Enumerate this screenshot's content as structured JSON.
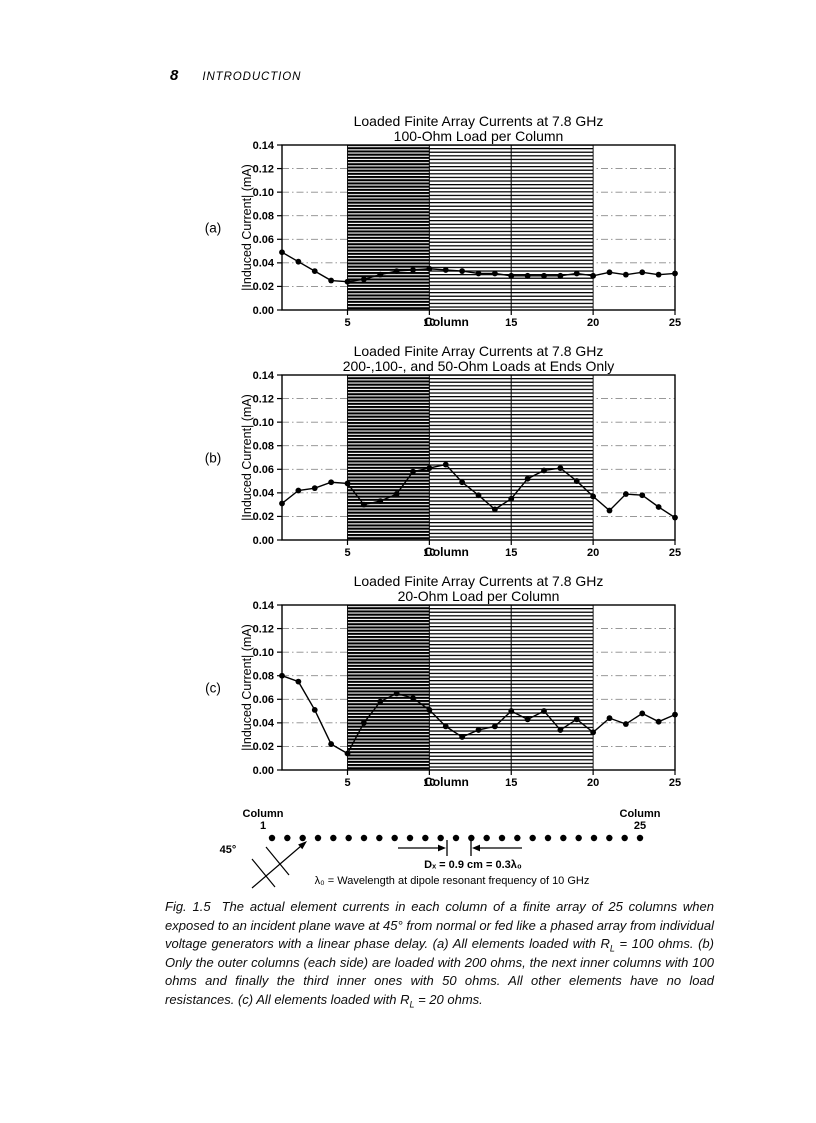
{
  "page": {
    "number": "8",
    "running_head": "INTRODUCTION"
  },
  "colors": {
    "ink": "#000000",
    "paper": "#ffffff",
    "gridline": "#8a8a8a"
  },
  "chart_data": [
    {
      "type": "line",
      "panel": "(a)",
      "title": "Loaded Finite Array Currents at 7.8 GHz",
      "subtitle": "100-Ohm Load per Column",
      "xlabel": "Column",
      "ylabel": "|Induced Current| (mA)",
      "x": [
        1,
        2,
        3,
        4,
        5,
        6,
        7,
        8,
        9,
        10,
        11,
        12,
        13,
        14,
        15,
        16,
        17,
        18,
        19,
        20,
        21,
        22,
        23,
        24,
        25
      ],
      "values": [
        0.049,
        0.041,
        0.033,
        0.025,
        0.024,
        0.026,
        0.03,
        0.033,
        0.034,
        0.035,
        0.034,
        0.033,
        0.031,
        0.031,
        0.029,
        0.029,
        0.029,
        0.029,
        0.031,
        0.029,
        0.032,
        0.03,
        0.032,
        0.03,
        0.031
      ],
      "ylim": [
        0,
        0.14
      ],
      "ytick_step": 0.02,
      "xticks": [
        5,
        10,
        15,
        20,
        25
      ],
      "marker": "filled-circle",
      "grid": "horizontal dash-dot",
      "legend": "none",
      "shaded_bands": [
        {
          "from": 5,
          "to": 10,
          "shade": "dark"
        },
        {
          "from": 10,
          "to": 15,
          "shade": "medium"
        },
        {
          "from": 15,
          "to": 20,
          "shade": "medium"
        }
      ]
    },
    {
      "type": "line",
      "panel": "(b)",
      "title": "Loaded Finite Array Currents at 7.8 GHz",
      "subtitle": "200-,100-, and 50-Ohm Loads at Ends Only",
      "xlabel": "Column",
      "ylabel": "|Induced Current| (mA)",
      "x": [
        1,
        2,
        3,
        4,
        5,
        6,
        7,
        8,
        9,
        10,
        11,
        12,
        13,
        14,
        15,
        16,
        17,
        18,
        19,
        20,
        21,
        22,
        23,
        24,
        25
      ],
      "values": [
        0.031,
        0.042,
        0.044,
        0.049,
        0.048,
        0.03,
        0.033,
        0.039,
        0.058,
        0.061,
        0.064,
        0.049,
        0.038,
        0.026,
        0.035,
        0.052,
        0.059,
        0.061,
        0.05,
        0.037,
        0.025,
        0.039,
        0.038,
        0.028,
        0.019
      ],
      "ylim": [
        0,
        0.14
      ],
      "ytick_step": 0.02,
      "xticks": [
        5,
        10,
        15,
        20,
        25
      ],
      "marker": "filled-circle",
      "grid": "horizontal dash-dot",
      "legend": "none",
      "shaded_bands": [
        {
          "from": 5,
          "to": 10,
          "shade": "dark"
        },
        {
          "from": 10,
          "to": 15,
          "shade": "medium"
        },
        {
          "from": 15,
          "to": 20,
          "shade": "medium"
        }
      ]
    },
    {
      "type": "line",
      "panel": "(c)",
      "title": "Loaded Finite Array Currents at 7.8 GHz",
      "subtitle": "20-Ohm Load per Column",
      "xlabel": "Column",
      "ylabel": "|Induced Current| (mA)",
      "x": [
        1,
        2,
        3,
        4,
        5,
        6,
        7,
        8,
        9,
        10,
        11,
        12,
        13,
        14,
        15,
        16,
        17,
        18,
        19,
        20,
        21,
        22,
        23,
        24,
        25
      ],
      "values": [
        0.08,
        0.075,
        0.051,
        0.022,
        0.014,
        0.04,
        0.058,
        0.065,
        0.061,
        0.051,
        0.037,
        0.028,
        0.034,
        0.037,
        0.05,
        0.043,
        0.05,
        0.034,
        0.043,
        0.032,
        0.044,
        0.039,
        0.048,
        0.041,
        0.047
      ],
      "ylim": [
        0,
        0.14
      ],
      "ytick_step": 0.02,
      "xticks": [
        5,
        10,
        15,
        20,
        25
      ],
      "marker": "filled-circle",
      "grid": "horizontal dash-dot",
      "legend": "none",
      "shaded_bands": [
        {
          "from": 5,
          "to": 10,
          "shade": "dark"
        },
        {
          "from": 10,
          "to": 15,
          "shade": "medium"
        },
        {
          "from": 15,
          "to": 20,
          "shade": "medium"
        }
      ]
    }
  ],
  "diagram": {
    "dots": 25,
    "left_label": {
      "line1": "Column",
      "line2": "1"
    },
    "right_label": {
      "line1": "Column",
      "line2": "25"
    },
    "incidence_angle": "45°",
    "spacing_label": "Dₓ = 0.9 cm = 0.3λ₀",
    "wavelength_note": "λ₀ = Wavelength at dipole resonant frequency of 10 GHz"
  },
  "caption": {
    "segments": [
      {
        "text": "Fig. 1.5",
        "cls": "fig-label"
      },
      {
        "text": "The actual element currents in each column of a finite array of 25 columns when exposed to an incident plane wave at 45° from normal or fed like a phased array from individual voltage generators with a linear phase delay. (a) All elements loaded with "
      },
      {
        "text": "R"
      },
      {
        "text": "L",
        "sub": true
      },
      {
        "text": " = 100 ohms. (b) Only the outer columns (each side) are loaded with 200 ohms, the next inner columns with 100 ohms and finally the third inner ones with 50 ohms. All other elements have no load resistances. (c) All elements loaded with "
      },
      {
        "text": "R"
      },
      {
        "text": "L",
        "sub": true
      },
      {
        "text": " = 20 ohms."
      }
    ]
  }
}
